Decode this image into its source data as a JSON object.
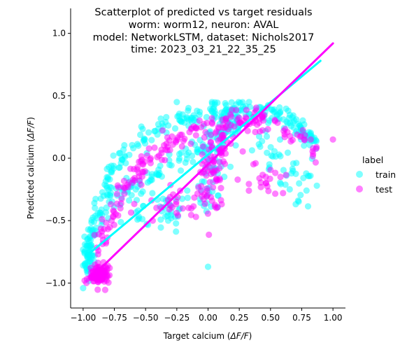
{
  "chart_data": {
    "type": "scatter",
    "title_lines": [
      "Scatterplot of predicted vs target residuals",
      "worm: worm12, neuron: AVAL",
      "model: NetworkLSTM, dataset: Nichols2017",
      "time: 2023_03_21_22_35_25"
    ],
    "xlabel_prefix": "Target calcium (",
    "ylabel_prefix": "Predicted calcium (",
    "label_math": "ΔF/F",
    "label_suffix": ")",
    "xlim": [
      -1.1,
      1.1
    ],
    "ylim": [
      -1.2,
      1.2
    ],
    "xticks": [
      -1.0,
      -0.75,
      -0.5,
      -0.25,
      0.0,
      0.25,
      0.5,
      0.75,
      1.0
    ],
    "xtick_labels": [
      "−1.00",
      "−0.75",
      "−0.50",
      "−0.25",
      "0.00",
      "0.25",
      "0.50",
      "0.75",
      "1.00"
    ],
    "yticks": [
      -1.0,
      -0.5,
      0.0,
      0.5,
      1.0
    ],
    "ytick_labels": [
      "−1.0",
      "−0.5",
      "0.0",
      "0.5",
      "1.0"
    ],
    "legend": {
      "title": "label",
      "placement": "right",
      "entries": [
        "train",
        "test"
      ]
    },
    "grid": false,
    "series": [
      {
        "name": "train",
        "color": "#00FFFF",
        "marker_alpha": 0.5,
        "regression_line": {
          "x": [
            -0.97,
            0.9
          ],
          "y": [
            -0.78,
            0.78
          ]
        },
        "clusters": [
          {
            "kind": "curve",
            "path": [
              [
                -0.98,
                -0.95
              ],
              [
                -0.96,
                -0.75
              ],
              [
                -0.92,
                -0.55
              ],
              [
                -0.85,
                -0.3
              ],
              [
                -0.78,
                -0.12
              ],
              [
                -0.68,
                0.02
              ],
              [
                -0.55,
                0.14
              ],
              [
                -0.4,
                0.24
              ],
              [
                -0.25,
                0.3
              ],
              [
                -0.1,
                0.34
              ],
              [
                0.05,
                0.38
              ],
              [
                0.2,
                0.4
              ],
              [
                0.35,
                0.4
              ],
              [
                0.5,
                0.37
              ],
              [
                0.62,
                0.32
              ],
              [
                0.72,
                0.25
              ],
              [
                0.8,
                0.18
              ],
              [
                0.87,
                0.1
              ]
            ],
            "n": 260,
            "spread_x": 0.025,
            "spread_y": 0.04
          },
          {
            "kind": "curve",
            "path": [
              [
                -0.95,
                -0.6
              ],
              [
                -0.85,
                -0.42
              ],
              [
                -0.72,
                -0.3
              ],
              [
                -0.58,
                -0.22
              ],
              [
                -0.45,
                -0.15
              ],
              [
                -0.3,
                -0.05
              ],
              [
                -0.15,
                0.05
              ],
              [
                0.0,
                0.15
              ],
              [
                0.12,
                0.25
              ],
              [
                0.25,
                0.32
              ]
            ],
            "n": 110,
            "spread_x": 0.03,
            "spread_y": 0.05
          },
          {
            "kind": "curve",
            "path": [
              [
                0.02,
                -0.4
              ],
              [
                0.0,
                -0.25
              ],
              [
                0.02,
                -0.1
              ],
              [
                0.05,
                0.05
              ],
              [
                0.1,
                0.2
              ],
              [
                0.15,
                0.32
              ]
            ],
            "n": 70,
            "spread_x": 0.05,
            "spread_y": 0.06
          },
          {
            "kind": "curve",
            "path": [
              [
                0.1,
                0.35
              ],
              [
                0.25,
                0.22
              ],
              [
                0.4,
                0.1
              ],
              [
                0.55,
                -0.02
              ],
              [
                0.68,
                -0.12
              ],
              [
                0.78,
                -0.22
              ]
            ],
            "n": 55,
            "spread_x": 0.05,
            "spread_y": 0.1
          },
          {
            "kind": "blob",
            "cx": -0.4,
            "cy": -0.4,
            "rx": 0.28,
            "ry": 0.18,
            "n": 45
          },
          {
            "kind": "blob",
            "cx": -0.95,
            "cy": -0.75,
            "rx": 0.04,
            "ry": 0.2,
            "n": 40
          },
          {
            "kind": "point",
            "x": 0.0,
            "y": -0.87
          }
        ]
      },
      {
        "name": "test",
        "color": "#FF00FF",
        "marker_alpha": 0.5,
        "regression_line": {
          "x": [
            -0.93,
            1.0
          ],
          "y": [
            -0.95,
            0.92
          ]
        },
        "clusters": [
          {
            "kind": "blob",
            "cx": -0.87,
            "cy": -0.93,
            "rx": 0.07,
            "ry": 0.09,
            "n": 110
          },
          {
            "kind": "curve",
            "path": [
              [
                -0.88,
                -0.75
              ],
              [
                -0.8,
                -0.5
              ],
              [
                -0.7,
                -0.3
              ],
              [
                -0.58,
                -0.12
              ],
              [
                -0.45,
                0.0
              ],
              [
                -0.3,
                0.12
              ],
              [
                -0.15,
                0.2
              ],
              [
                0.0,
                0.25
              ],
              [
                0.15,
                0.3
              ],
              [
                0.3,
                0.33
              ],
              [
                0.45,
                0.33
              ]
            ],
            "n": 150,
            "spread_x": 0.03,
            "spread_y": 0.05
          },
          {
            "kind": "curve",
            "path": [
              [
                0.05,
                -0.4
              ],
              [
                0.02,
                -0.2
              ],
              [
                0.03,
                0.0
              ],
              [
                0.08,
                0.15
              ],
              [
                0.15,
                0.28
              ]
            ],
            "n": 90,
            "spread_x": 0.05,
            "spread_y": 0.06
          },
          {
            "kind": "curve",
            "path": [
              [
                0.3,
                0.3
              ],
              [
                0.5,
                0.25
              ],
              [
                0.65,
                0.2
              ],
              [
                0.78,
                0.12
              ],
              [
                0.9,
                0.05
              ]
            ],
            "n": 35,
            "spread_x": 0.03,
            "spread_y": 0.04
          },
          {
            "kind": "blob",
            "cx": -0.2,
            "cy": -0.38,
            "rx": 0.35,
            "ry": 0.12,
            "n": 35
          },
          {
            "kind": "blob",
            "cx": 0.4,
            "cy": -0.15,
            "rx": 0.2,
            "ry": 0.15,
            "n": 20
          },
          {
            "kind": "point",
            "x": 1.0,
            "y": 0.15
          },
          {
            "kind": "point",
            "x": 0.6,
            "y": -0.28
          },
          {
            "kind": "point",
            "x": 0.58,
            "y": -0.15
          }
        ]
      }
    ]
  }
}
